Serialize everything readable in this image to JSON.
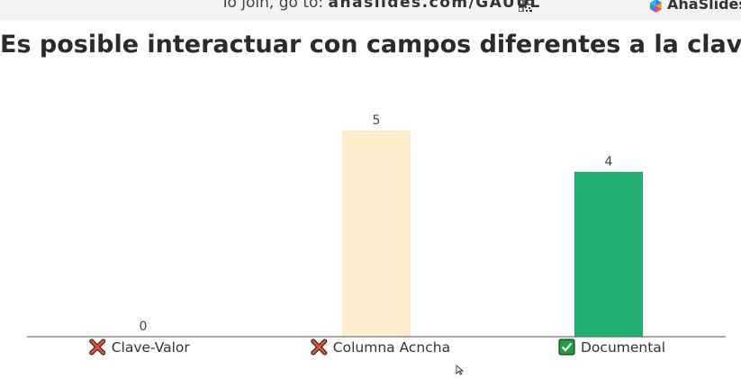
{
  "header": {
    "join_prefix": "To join, go to: ",
    "join_code": "ahaslides.com/GAUUL",
    "brand": "AhaSlides",
    "qr_icon": "qr-code-icon"
  },
  "title": "Es posible interactuar con campos diferentes a la clave:",
  "chart_data": {
    "type": "bar",
    "categories": [
      "Clave-Valor",
      "Columna Acncha",
      "Documental"
    ],
    "values": [
      0,
      5,
      4
    ],
    "correct": [
      false,
      false,
      true
    ],
    "colors": [
      "#e0e0e0",
      "#fdefce",
      "#21ae6e"
    ],
    "ylim": [
      0,
      5
    ],
    "title": "",
    "xlabel": "",
    "ylabel": ""
  },
  "colors": {
    "wrong_marker": "#e3503a",
    "correct_marker": "#1f9e3f"
  }
}
